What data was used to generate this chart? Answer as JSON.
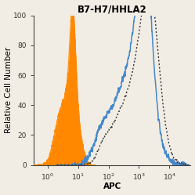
{
  "title": "B7-H7/HHLA2",
  "xlabel": "APC",
  "ylabel": "Relative Cell Number",
  "ylim": [
    0,
    100
  ],
  "yticks": [
    0,
    20,
    40,
    60,
    80,
    100
  ],
  "orange_color": "#FF8800",
  "blue_color": "#4488CC",
  "dot_color": "#333333",
  "bg_color": "#F2EDE4",
  "title_fontsize": 8.5,
  "label_fontsize": 7.5,
  "tick_fontsize": 6.5
}
